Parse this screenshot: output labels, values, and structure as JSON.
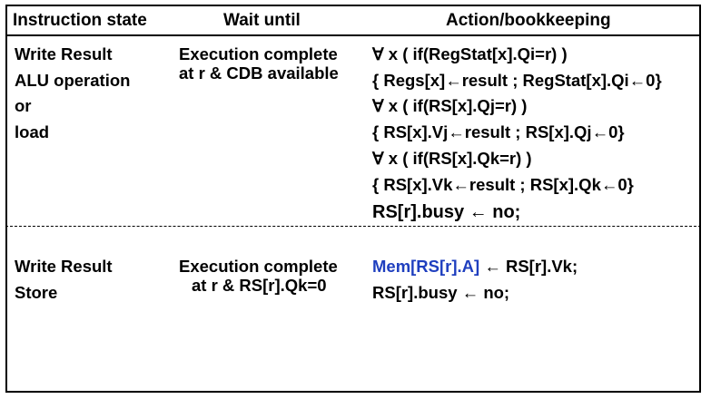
{
  "headers": {
    "state": "Instruction state",
    "wait": "Wait until",
    "action": "Action/bookkeeping"
  },
  "row1": {
    "state": [
      "Write Result",
      "ALU operation",
      "or",
      "load"
    ],
    "wait": [
      "Execution complete",
      "at r & CDB available"
    ],
    "action": [
      "∀ x ( if(RegStat[x].Qi=r) )",
      "{ Regs[x]←result ; RegStat[x].Qi←0}",
      "∀ x ( if(RS[x].Qj=r) )",
      "{ RS[x].Vj←result ; RS[x].Qj←0}",
      "∀ x ( if(RS[x].Qk=r) )",
      "{ RS[x].Vk←result ; RS[x].Qk←0}",
      "RS[r].busy ← no;"
    ]
  },
  "row2": {
    "state": [
      "Write Result",
      "Store"
    ],
    "wait": [
      "Execution complete",
      "at r & RS[r].Qk=0"
    ],
    "action_line1_highlight": "Mem[RS[r].A]",
    "action_line1_rest": " ← RS[r].Vk;",
    "action_line2": "RS[r].busy ← no;"
  },
  "colors": {
    "highlight": "#1f3fbf"
  }
}
